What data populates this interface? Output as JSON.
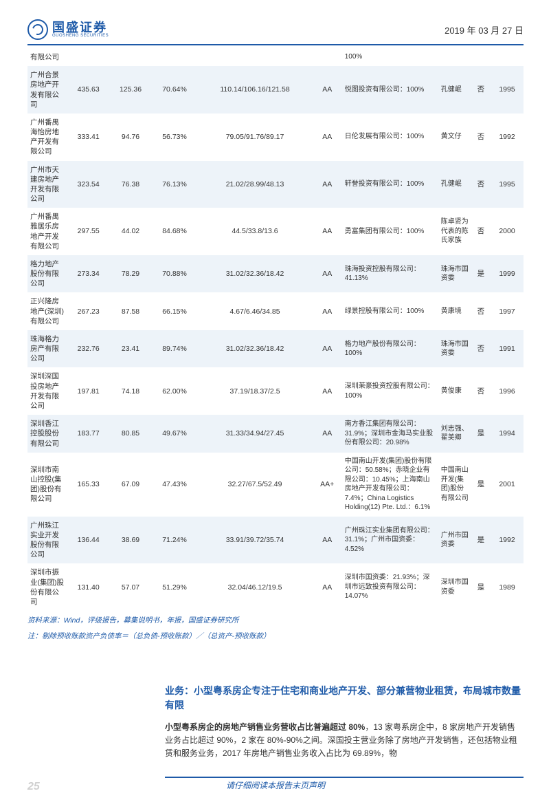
{
  "header": {
    "logo_cn": "国盛证券",
    "logo_en": "GUOSHENG SECURITIES",
    "date": "2019 年 03 月 27 日"
  },
  "pre_row": {
    "company": "有限公司",
    "pct": "100%"
  },
  "table": {
    "rows": [
      {
        "company": "广州合景房地产开发有限公司",
        "v1": "435.63",
        "v2": "125.36",
        "v3": "70.64%",
        "v4": "110.14/106.16/121.58",
        "rating": "AA",
        "shareholder": "悦图投资有限公司：100%",
        "controller": "孔健岷",
        "listed": "否",
        "year": "1995"
      },
      {
        "company": "广州番禺海怡房地产开发有限公司",
        "v1": "333.41",
        "v2": "94.76",
        "v3": "56.73%",
        "v4": "79.05/91.76/89.17",
        "rating": "AA",
        "shareholder": "日伦发展有限公司：100%",
        "controller": "黄文仔",
        "listed": "否",
        "year": "1992"
      },
      {
        "company": "广州市天建房地产开发有限公司",
        "v1": "323.54",
        "v2": "76.38",
        "v3": "76.13%",
        "v4": "21.02/28.99/48.13",
        "rating": "AA",
        "shareholder": "轩誉投资有限公司：100%",
        "controller": "孔健岷",
        "listed": "否",
        "year": "1995"
      },
      {
        "company": "广州番禺雅居乐房地产开发有限公司",
        "v1": "297.55",
        "v2": "44.02",
        "v3": "84.68%",
        "v4": "44.5/33.8/13.6",
        "rating": "AA",
        "shareholder": "勇富集团有限公司：100%",
        "controller": "陈卓贤为代表的陈氏家族",
        "listed": "否",
        "year": "2000"
      },
      {
        "company": "格力地产股份有限公司",
        "v1": "273.34",
        "v2": "78.29",
        "v3": "70.88%",
        "v4": "31.02/32.36/18.42",
        "rating": "AA",
        "shareholder": "珠海投资控股有限公司：41.13%",
        "controller": "珠海市国资委",
        "listed": "是",
        "year": "1999"
      },
      {
        "company": "正兴隆房地产(深圳)有限公司",
        "v1": "267.23",
        "v2": "87.58",
        "v3": "66.15%",
        "v4": "4.67/6.46/34.85",
        "rating": "AA",
        "shareholder": "绿景控股有限公司：100%",
        "controller": "黄康境",
        "listed": "否",
        "year": "1997"
      },
      {
        "company": "珠海格力房产有限公司",
        "v1": "232.76",
        "v2": "23.41",
        "v3": "89.74%",
        "v4": "31.02/32.36/18.42",
        "rating": "AA",
        "shareholder": "格力地产股份有限公司：100%",
        "controller": "珠海市国资委",
        "listed": "否",
        "year": "1991"
      },
      {
        "company": "深圳深国投房地产开发有限公司",
        "v1": "197.81",
        "v2": "74.18",
        "v3": "62.00%",
        "v4": "37.19/18.37/2.5",
        "rating": "AA",
        "shareholder": "深圳茉豪投资控股有限公司：100%",
        "controller": "黄俊康",
        "listed": "否",
        "year": "1996"
      },
      {
        "company": "深圳香江控股股份有限公司",
        "v1": "183.77",
        "v2": "80.85",
        "v3": "49.67%",
        "v4": "31.33/34.94/27.45",
        "rating": "AA",
        "shareholder": "南方香江集团有限公司：31.9%；深圳市金海马实业股份有限公司：20.98%",
        "controller": "刘志强、翟美卿",
        "listed": "是",
        "year": "1994"
      },
      {
        "company": "深圳市南山控股(集团)股份有限公司",
        "v1": "165.33",
        "v2": "67.09",
        "v3": "47.43%",
        "v4": "32.27/67.5/52.49",
        "rating": "AA+",
        "shareholder": "中国南山开发(集团)股份有限公司：50.58%；赤晓企业有限公司：10.45%；上海南山房地产开发有限公司：7.4%；China Logistics Holding(12) Pte. Ltd.：6.1%",
        "controller": "中国南山开发(集团)股份有限公司",
        "listed": "是",
        "year": "2001"
      },
      {
        "company": "广州珠江实业开发股份有限公司",
        "v1": "136.44",
        "v2": "38.69",
        "v3": "71.24%",
        "v4": "33.91/39.72/35.74",
        "rating": "AA",
        "shareholder": "广州珠江实业集团有限公司：31.1%；广州市国资委：4.52%",
        "controller": "广州市国资委",
        "listed": "是",
        "year": "1992"
      },
      {
        "company": "深圳市振业(集团)股份有限公司",
        "v1": "131.40",
        "v2": "57.07",
        "v3": "51.29%",
        "v4": "32.04/46.12/19.5",
        "rating": "AA",
        "shareholder": "深圳市国资委：21.93%；深圳市远致投资有限公司：14.07%",
        "controller": "深圳市国资委",
        "listed": "是",
        "year": "1989"
      }
    ]
  },
  "source": "资料来源：Wind，评级报告，募集说明书，年报，国盛证券研究所",
  "note": "注：剔除预收账款资产负债率＝（总负债-预收账款）／（总资产-预收账款）",
  "section": {
    "title": "业务：小型粤系房企专注于住宅和商业地产开发、部分兼营物业租赁，布局城市数量有限",
    "body_bold": "小型粤系房企的房地产销售业务营收占比普遍超过 80%",
    "body_rest": "，13 家粤系房企中，8 家房地产开发销售业务占比超过 90%，2 家在 80%-90%之间。深国投主营业务除了房地产开发销售，还包括物业租赁和服务业务，2017 年房地产销售业务收入占比为 69.89%，物"
  },
  "footer": {
    "text": "请仔细阅读本报告末页声明",
    "page": "25"
  }
}
